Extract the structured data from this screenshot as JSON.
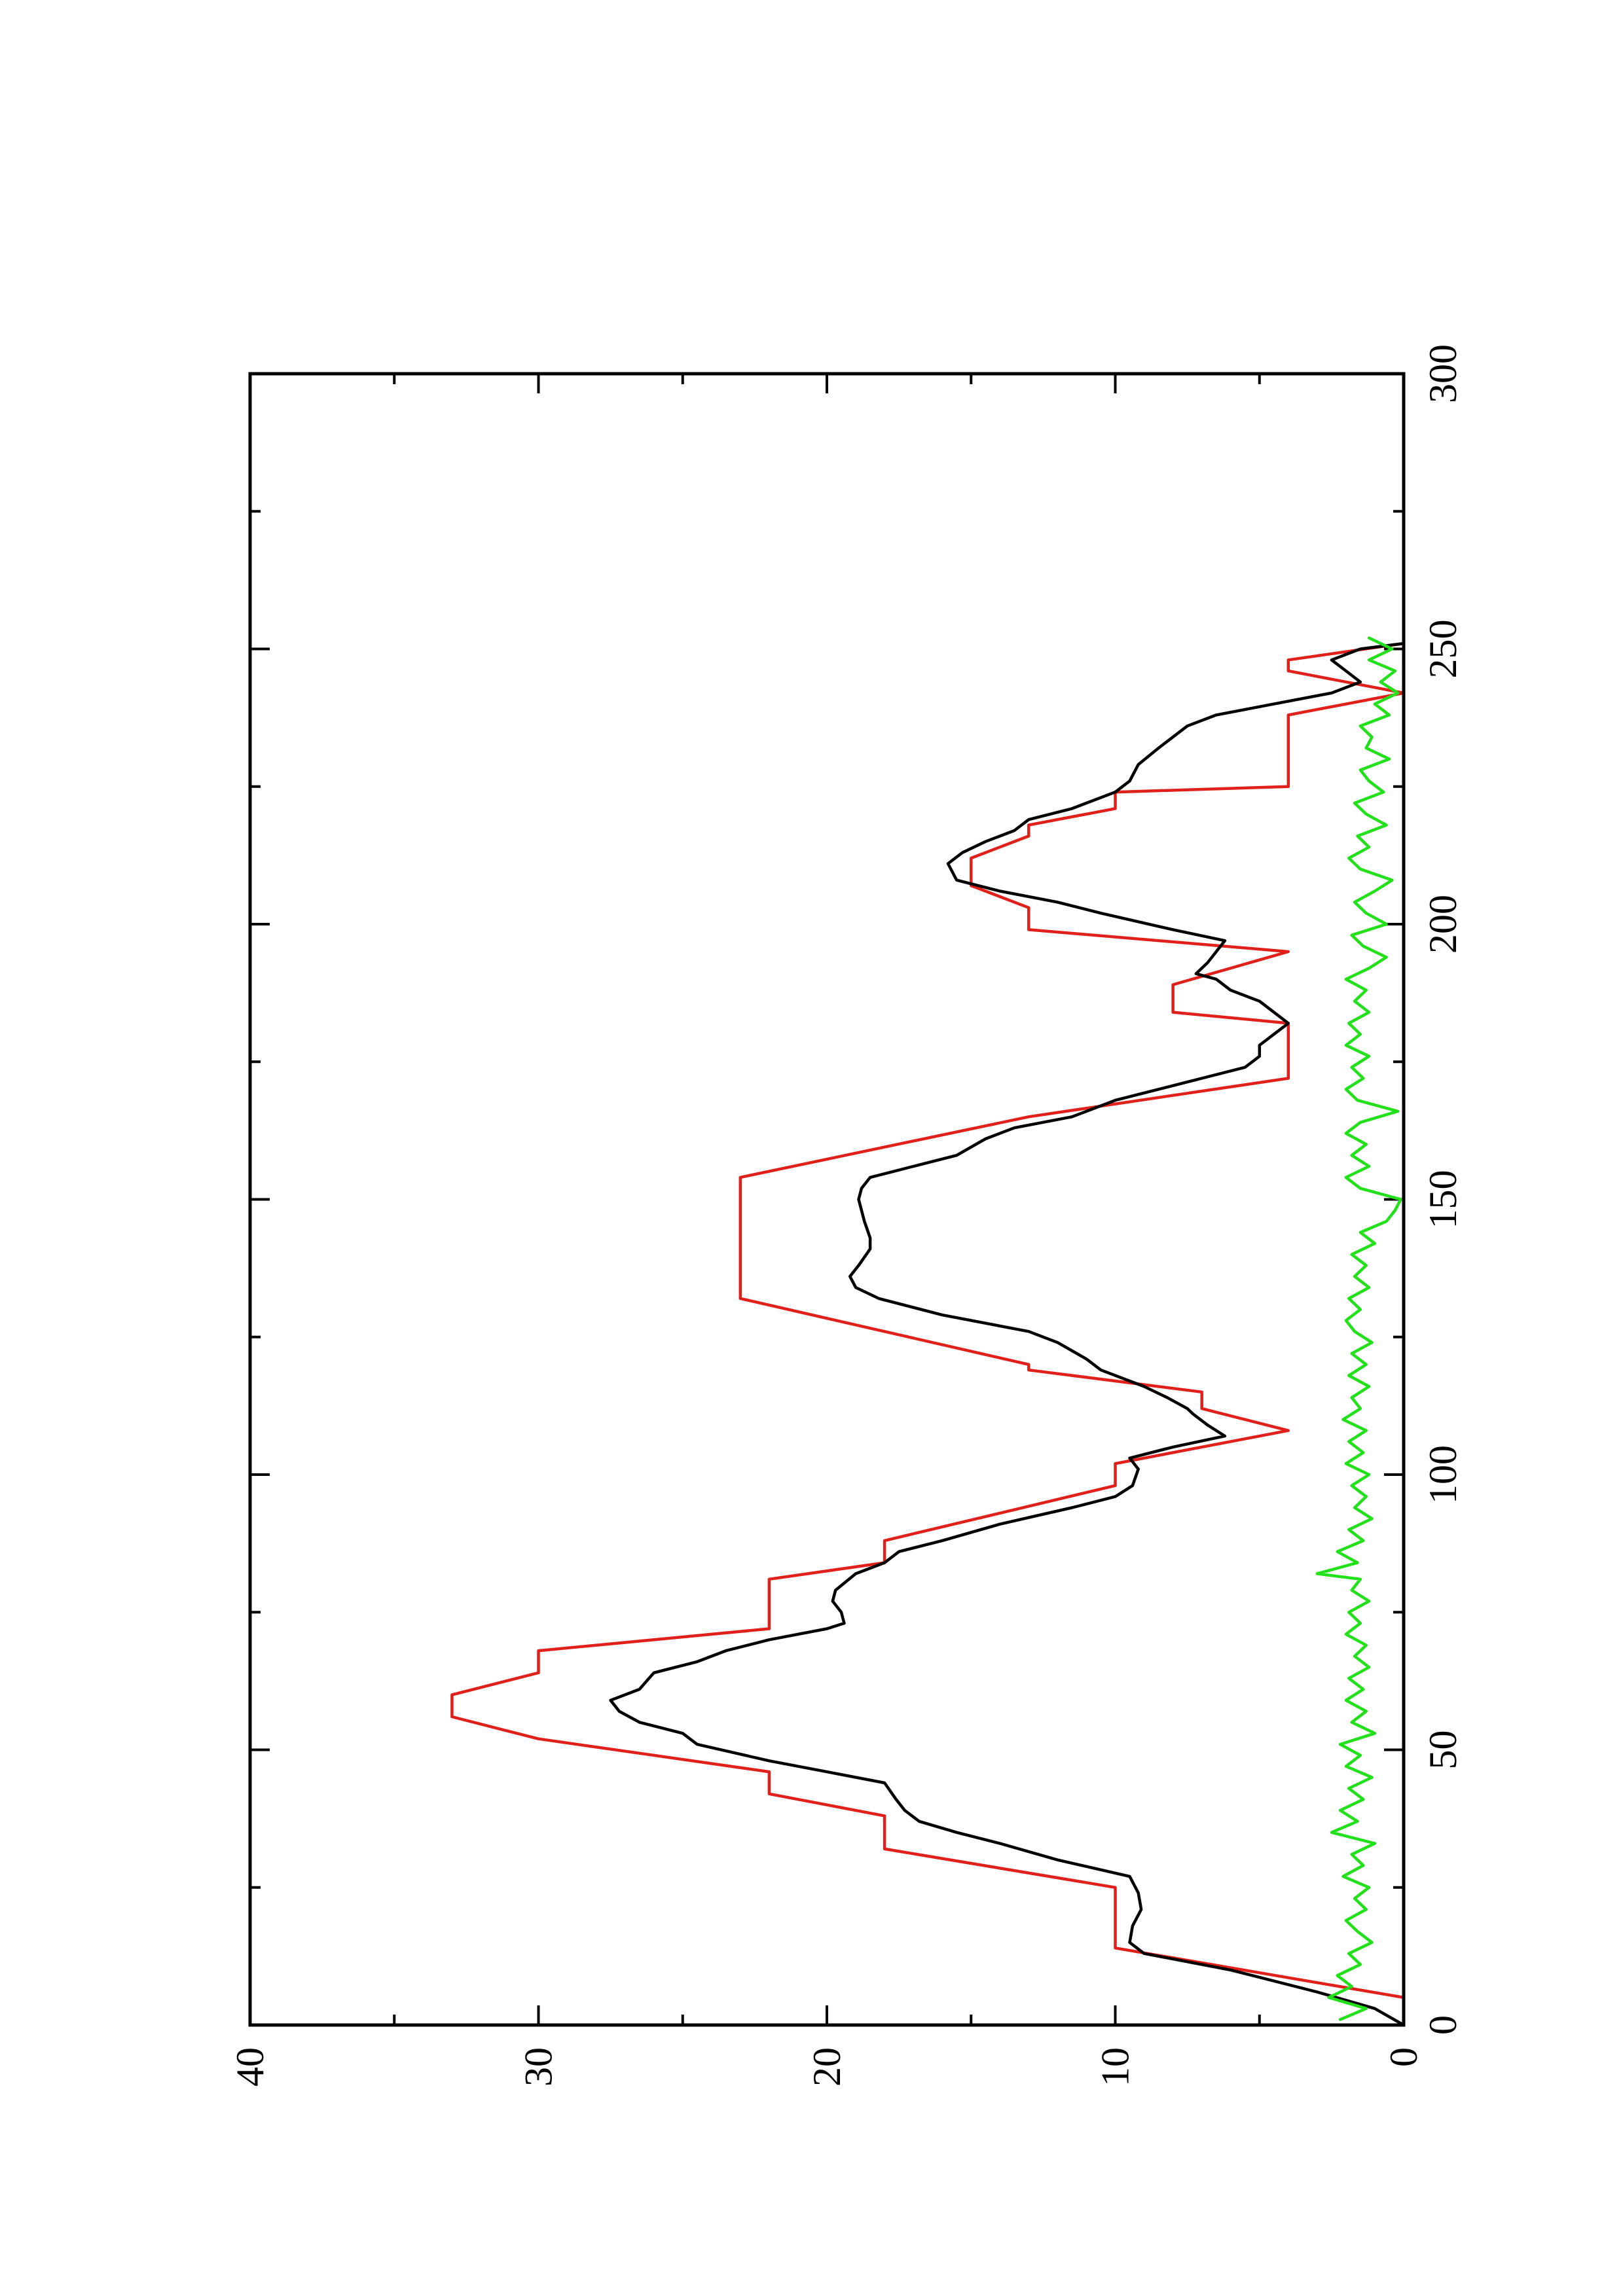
{
  "chart_data": {
    "type": "line",
    "orientation": "rotated-90-ccw",
    "title": "",
    "xlabel": "",
    "ylabel": "",
    "xlim": [
      0,
      300
    ],
    "ylim": [
      0,
      40
    ],
    "x_ticks": [
      0,
      50,
      100,
      150,
      200,
      250,
      300
    ],
    "x_tick_labels": [
      "0",
      "50",
      "100",
      "150",
      "200",
      "250",
      "300"
    ],
    "x_minor_ticks": [
      25,
      75,
      125,
      175,
      225,
      275
    ],
    "y_ticks": [
      0,
      10,
      20,
      30,
      40
    ],
    "y_tick_labels": [
      "0",
      "10",
      "20",
      "30",
      "40"
    ],
    "y_minor_ticks": [
      5,
      15,
      25,
      35
    ],
    "grid": false,
    "legend": "none",
    "series": [
      {
        "color": "#e0201b",
        "points": [
          [
            0,
            0
          ],
          [
            5,
            0
          ],
          [
            14,
            10
          ],
          [
            25,
            10
          ],
          [
            32,
            18
          ],
          [
            38,
            18
          ],
          [
            42,
            22
          ],
          [
            46,
            22
          ],
          [
            52,
            30
          ],
          [
            56,
            33
          ],
          [
            60,
            33
          ],
          [
            64,
            30
          ],
          [
            68,
            30
          ],
          [
            72,
            22
          ],
          [
            81,
            22
          ],
          [
            84,
            18
          ],
          [
            88,
            18
          ],
          [
            98,
            10
          ],
          [
            102,
            10
          ],
          [
            108,
            4
          ],
          [
            112,
            7
          ],
          [
            115,
            7
          ],
          [
            119,
            13
          ],
          [
            120,
            13
          ],
          [
            132,
            23
          ],
          [
            154,
            23
          ],
          [
            165,
            13
          ],
          [
            172,
            4
          ],
          [
            182,
            4
          ],
          [
            184,
            8
          ],
          [
            189,
            8
          ],
          [
            195,
            4
          ],
          [
            199,
            13
          ],
          [
            203,
            13
          ],
          [
            207,
            15
          ],
          [
            212,
            15
          ],
          [
            216,
            13
          ],
          [
            218,
            13
          ],
          [
            221,
            10
          ],
          [
            224,
            10
          ],
          [
            225,
            4
          ],
          [
            238,
            4
          ],
          [
            242,
            0
          ],
          [
            246,
            4
          ],
          [
            248,
            4
          ],
          [
            251,
            0
          ]
        ]
      },
      {
        "color": "#000000",
        "points": [
          [
            0,
            0
          ],
          [
            3,
            1
          ],
          [
            6,
            3
          ],
          [
            10,
            6
          ],
          [
            13,
            9
          ],
          [
            15,
            9.5
          ],
          [
            18,
            9.4
          ],
          [
            21,
            9.1
          ],
          [
            24,
            9.2
          ],
          [
            27,
            9.5
          ],
          [
            30,
            12
          ],
          [
            33,
            14
          ],
          [
            35,
            15.5
          ],
          [
            37,
            16.8
          ],
          [
            39,
            17.3
          ],
          [
            41,
            17.6
          ],
          [
            44,
            18
          ],
          [
            46,
            20
          ],
          [
            48,
            22
          ],
          [
            51,
            24.5
          ],
          [
            53,
            25
          ],
          [
            55,
            26.5
          ],
          [
            57,
            27.2
          ],
          [
            59,
            27.5
          ],
          [
            61,
            26.5
          ],
          [
            64,
            26
          ],
          [
            66,
            24.5
          ],
          [
            68,
            23.5
          ],
          [
            70,
            22
          ],
          [
            72,
            20
          ],
          [
            73,
            19.4
          ],
          [
            75,
            19.5
          ],
          [
            77,
            19.8
          ],
          [
            79,
            19.7
          ],
          [
            82,
            19
          ],
          [
            84,
            18
          ],
          [
            86,
            17.5
          ],
          [
            88,
            16
          ],
          [
            91,
            14
          ],
          [
            94,
            11.5
          ],
          [
            96,
            10
          ],
          [
            98,
            9.4
          ],
          [
            101,
            9.2
          ],
          [
            103,
            9.5
          ],
          [
            105,
            8
          ],
          [
            107,
            6.2
          ],
          [
            109,
            6.8
          ],
          [
            111,
            7.3
          ],
          [
            112,
            7.5
          ],
          [
            114,
            8.2
          ],
          [
            116,
            9
          ],
          [
            119,
            10.5
          ],
          [
            121,
            11
          ],
          [
            124,
            12
          ],
          [
            126,
            13
          ],
          [
            129,
            16
          ],
          [
            132,
            18.2
          ],
          [
            134,
            19
          ],
          [
            136,
            19.2
          ],
          [
            138,
            18.9
          ],
          [
            141,
            18.5
          ],
          [
            143,
            18.5
          ],
          [
            146,
            18.7
          ],
          [
            150,
            18.9
          ],
          [
            152,
            18.8
          ],
          [
            154,
            18.5
          ],
          [
            156,
            17
          ],
          [
            158,
            15.5
          ],
          [
            161,
            14.5
          ],
          [
            163,
            13.5
          ],
          [
            165,
            11.5
          ],
          [
            168,
            10
          ],
          [
            170,
            8.5
          ],
          [
            172,
            7
          ],
          [
            174,
            5.5
          ],
          [
            176,
            5
          ],
          [
            178,
            5
          ],
          [
            180,
            4.5
          ],
          [
            182,
            4
          ],
          [
            184,
            4.5
          ],
          [
            186,
            5
          ],
          [
            188,
            6
          ],
          [
            190,
            6.5
          ],
          [
            191,
            7.2
          ],
          [
            193,
            6.8
          ],
          [
            195,
            6.5
          ],
          [
            197,
            6.2
          ],
          [
            199,
            8
          ],
          [
            202,
            10.5
          ],
          [
            204,
            12
          ],
          [
            206,
            14
          ],
          [
            208,
            15.5
          ],
          [
            211,
            15.8
          ],
          [
            213,
            15.3
          ],
          [
            215,
            14.5
          ],
          [
            217,
            13.5
          ],
          [
            219,
            13
          ],
          [
            221,
            11.5
          ],
          [
            224,
            10
          ],
          [
            226,
            9.5
          ],
          [
            229,
            9.2
          ],
          [
            232,
            8.5
          ],
          [
            234,
            8
          ],
          [
            236,
            7.5
          ],
          [
            238,
            6.5
          ],
          [
            240,
            4.5
          ],
          [
            242,
            2.5
          ],
          [
            244,
            1.5
          ],
          [
            246,
            2
          ],
          [
            248,
            2.5
          ],
          [
            250,
            1.5
          ],
          [
            251,
            0
          ]
        ]
      },
      {
        "color": "#22e01a",
        "points": [
          [
            1,
            2.2
          ],
          [
            3,
            1.3
          ],
          [
            5,
            2.6
          ],
          [
            7,
            1.8
          ],
          [
            9,
            2.3
          ],
          [
            11,
            1.5
          ],
          [
            13,
            1.9
          ],
          [
            15,
            1.1
          ],
          [
            17,
            1.6
          ],
          [
            19,
            2.0
          ],
          [
            21,
            1.3
          ],
          [
            23,
            1.7
          ],
          [
            25,
            1.2
          ],
          [
            27,
            2.1
          ],
          [
            29,
            1.4
          ],
          [
            31,
            1.8
          ],
          [
            33,
            1.0
          ],
          [
            35,
            2.5
          ],
          [
            37,
            1.6
          ],
          [
            39,
            2.2
          ],
          [
            41,
            1.4
          ],
          [
            43,
            1.9
          ],
          [
            45,
            1.1
          ],
          [
            47,
            2.0
          ],
          [
            49,
            1.5
          ],
          [
            51,
            2.2
          ],
          [
            53,
            1.0
          ],
          [
            55,
            1.8
          ],
          [
            57,
            1.3
          ],
          [
            59,
            2.0
          ],
          [
            61,
            1.4
          ],
          [
            63,
            1.9
          ],
          [
            65,
            1.2
          ],
          [
            67,
            1.7
          ],
          [
            69,
            1.3
          ],
          [
            71,
            2.0
          ],
          [
            73,
            1.5
          ],
          [
            75,
            1.9
          ],
          [
            77,
            1.2
          ],
          [
            79,
            1.8
          ],
          [
            81,
            1.5
          ],
          [
            82,
            3.0
          ],
          [
            84,
            1.6
          ],
          [
            86,
            2.3
          ],
          [
            88,
            1.4
          ],
          [
            90,
            1.9
          ],
          [
            92,
            1.1
          ],
          [
            94,
            1.7
          ],
          [
            96,
            1.3
          ],
          [
            98,
            1.8
          ],
          [
            100,
            1.2
          ],
          [
            102,
            2.0
          ],
          [
            104,
            1.4
          ],
          [
            106,
            1.9
          ],
          [
            108,
            1.3
          ],
          [
            110,
            2.1
          ],
          [
            112,
            1.5
          ],
          [
            114,
            1.8
          ],
          [
            116,
            1.2
          ],
          [
            118,
            1.9
          ],
          [
            120,
            1.3
          ],
          [
            122,
            1.8
          ],
          [
            124,
            1.1
          ],
          [
            126,
            1.7
          ],
          [
            128,
            2.0
          ],
          [
            130,
            1.5
          ],
          [
            132,
            1.9
          ],
          [
            134,
            1.2
          ],
          [
            136,
            1.7
          ],
          [
            138,
            1.3
          ],
          [
            140,
            1.8
          ],
          [
            142,
            1.0
          ],
          [
            144,
            1.5
          ],
          [
            146,
            0.6
          ],
          [
            148,
            0.3
          ],
          [
            150,
            0.1
          ],
          [
            152,
            1.5
          ],
          [
            154,
            2.0
          ],
          [
            156,
            1.2
          ],
          [
            158,
            1.8
          ],
          [
            160,
            1.3
          ],
          [
            162,
            2.0
          ],
          [
            164,
            1.5
          ],
          [
            166,
            0.2
          ],
          [
            168,
            1.6
          ],
          [
            170,
            2.0
          ],
          [
            172,
            1.4
          ],
          [
            174,
            1.8
          ],
          [
            176,
            1.2
          ],
          [
            178,
            2.0
          ],
          [
            180,
            1.5
          ],
          [
            182,
            1.9
          ],
          [
            184,
            1.2
          ],
          [
            186,
            1.7
          ],
          [
            188,
            1.3
          ],
          [
            190,
            2.0
          ],
          [
            192,
            1.2
          ],
          [
            194,
            0.6
          ],
          [
            196,
            1.4
          ],
          [
            198,
            1.8
          ],
          [
            200,
            0.6
          ],
          [
            202,
            1.3
          ],
          [
            204,
            1.7
          ],
          [
            206,
            1.0
          ],
          [
            208,
            0.4
          ],
          [
            210,
            1.5
          ],
          [
            212,
            1.9
          ],
          [
            214,
            1.2
          ],
          [
            216,
            1.6
          ],
          [
            218,
            0.6
          ],
          [
            220,
            1.3
          ],
          [
            222,
            1.7
          ],
          [
            224,
            0.7
          ],
          [
            226,
            1.2
          ],
          [
            228,
            1.5
          ],
          [
            230,
            0.5
          ],
          [
            232,
            1.3
          ],
          [
            234,
            1.1
          ],
          [
            236,
            1.5
          ],
          [
            238,
            0.5
          ],
          [
            240,
            1.0
          ],
          [
            242,
            0.2
          ],
          [
            244,
            0.8
          ],
          [
            246,
            0.3
          ],
          [
            248,
            1.2
          ],
          [
            250,
            0.4
          ],
          [
            252,
            1.2
          ]
        ]
      }
    ]
  }
}
